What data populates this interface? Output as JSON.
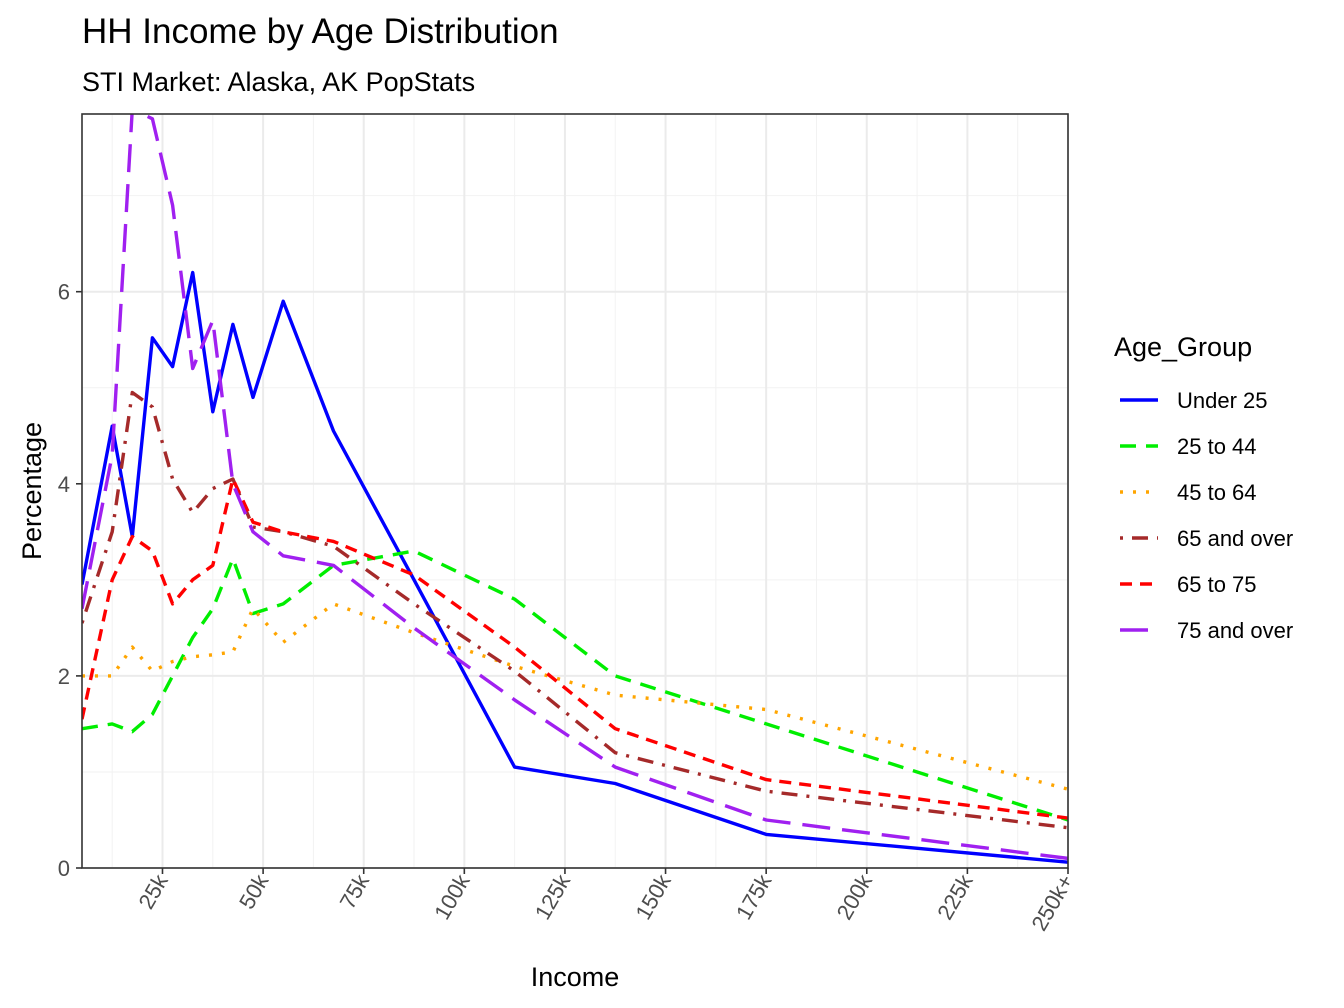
{
  "chart_data": {
    "type": "line",
    "title": "HH Income by Age Distribution",
    "subtitle": "STI Market: Alaska, AK PopStats",
    "xlabel": "Income",
    "ylabel": "Percentage",
    "xlim": [
      5,
      250
    ],
    "ylim": [
      0,
      7.85
    ],
    "x_ticks": [
      {
        "value": 25,
        "label": "25k"
      },
      {
        "value": 50,
        "label": "50k"
      },
      {
        "value": 75,
        "label": "75k"
      },
      {
        "value": 100,
        "label": "100k"
      },
      {
        "value": 125,
        "label": "125k"
      },
      {
        "value": 150,
        "label": "150k"
      },
      {
        "value": 175,
        "label": "175k"
      },
      {
        "value": 200,
        "label": "200k"
      },
      {
        "value": 225,
        "label": "225k"
      },
      {
        "value": 250,
        "label": "250k+"
      }
    ],
    "y_ticks": [
      {
        "value": 0,
        "label": "0"
      },
      {
        "value": 2,
        "label": "2"
      },
      {
        "value": 4,
        "label": "4"
      },
      {
        "value": 6,
        "label": "6"
      }
    ],
    "grid": true,
    "legend": {
      "title": "Age_Group",
      "position": "right"
    },
    "x": [
      5,
      12.5,
      17.5,
      22.5,
      27.5,
      32.5,
      37.5,
      42.5,
      47.5,
      55,
      67.5,
      87.5,
      112.5,
      137.5,
      175,
      250
    ],
    "series": [
      {
        "name": "Under 25",
        "color": "#0000ff",
        "dash": "solid",
        "values": [
          2.95,
          4.6,
          3.45,
          5.52,
          5.22,
          6.2,
          4.75,
          5.66,
          4.9,
          5.9,
          4.55,
          3.0,
          1.05,
          0.88,
          0.35,
          0.06
        ]
      },
      {
        "name": "25 to 44",
        "color": "#00ee00",
        "dash": "dashed",
        "values": [
          1.45,
          1.5,
          1.42,
          1.6,
          2.0,
          2.4,
          2.7,
          3.22,
          2.65,
          2.75,
          3.15,
          3.3,
          2.8,
          2.0,
          1.5,
          0.5
        ]
      },
      {
        "name": "45 to 64",
        "color": "#ffa500",
        "dash": "dotted",
        "values": [
          2.0,
          2.0,
          2.3,
          2.05,
          2.15,
          2.2,
          2.22,
          2.25,
          2.7,
          2.35,
          2.75,
          2.45,
          2.1,
          1.8,
          1.65,
          0.82
        ]
      },
      {
        "name": "65 and over",
        "color": "#a52a2a",
        "dash": "dotdash",
        "values": [
          2.55,
          3.5,
          4.95,
          4.8,
          4.05,
          3.7,
          3.95,
          4.05,
          3.55,
          3.5,
          3.35,
          2.75,
          2.05,
          1.2,
          0.8,
          0.42
        ]
      },
      {
        "name": "65 to 75",
        "color": "#ff0000",
        "dash": "dashed-short",
        "values": [
          1.55,
          3.0,
          3.45,
          3.3,
          2.75,
          3.0,
          3.15,
          4.05,
          3.6,
          3.5,
          3.4,
          3.05,
          2.3,
          1.45,
          0.92,
          0.52
        ]
      },
      {
        "name": "75 and over",
        "color": "#a020f0",
        "dash": "longdash",
        "values": [
          2.7,
          4.3,
          7.9,
          7.8,
          6.9,
          5.2,
          5.7,
          4.0,
          3.5,
          3.25,
          3.15,
          2.5,
          1.75,
          1.05,
          0.5,
          0.1
        ]
      }
    ]
  }
}
